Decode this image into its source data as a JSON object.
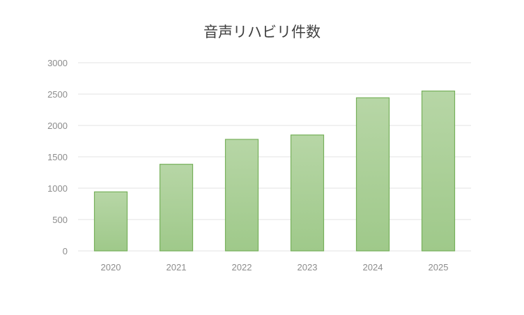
{
  "chart_data": {
    "type": "bar",
    "title": "音声リハビリ件数",
    "categories": [
      "2020",
      "2021",
      "2022",
      "2023",
      "2024",
      "2025"
    ],
    "values": [
      941,
      1381,
      1778,
      1848,
      2441,
      2549
    ],
    "ylim": [
      0,
      3000
    ],
    "yticks": [
      0,
      500,
      1000,
      1500,
      2000,
      2500,
      3000
    ],
    "grid": true,
    "legend": "none",
    "colors": {
      "bar_top": "#b7d6a6",
      "bar_bottom": "#9fc98a",
      "bar_border": "#76b05a",
      "grid": "#e3e3e3"
    }
  }
}
